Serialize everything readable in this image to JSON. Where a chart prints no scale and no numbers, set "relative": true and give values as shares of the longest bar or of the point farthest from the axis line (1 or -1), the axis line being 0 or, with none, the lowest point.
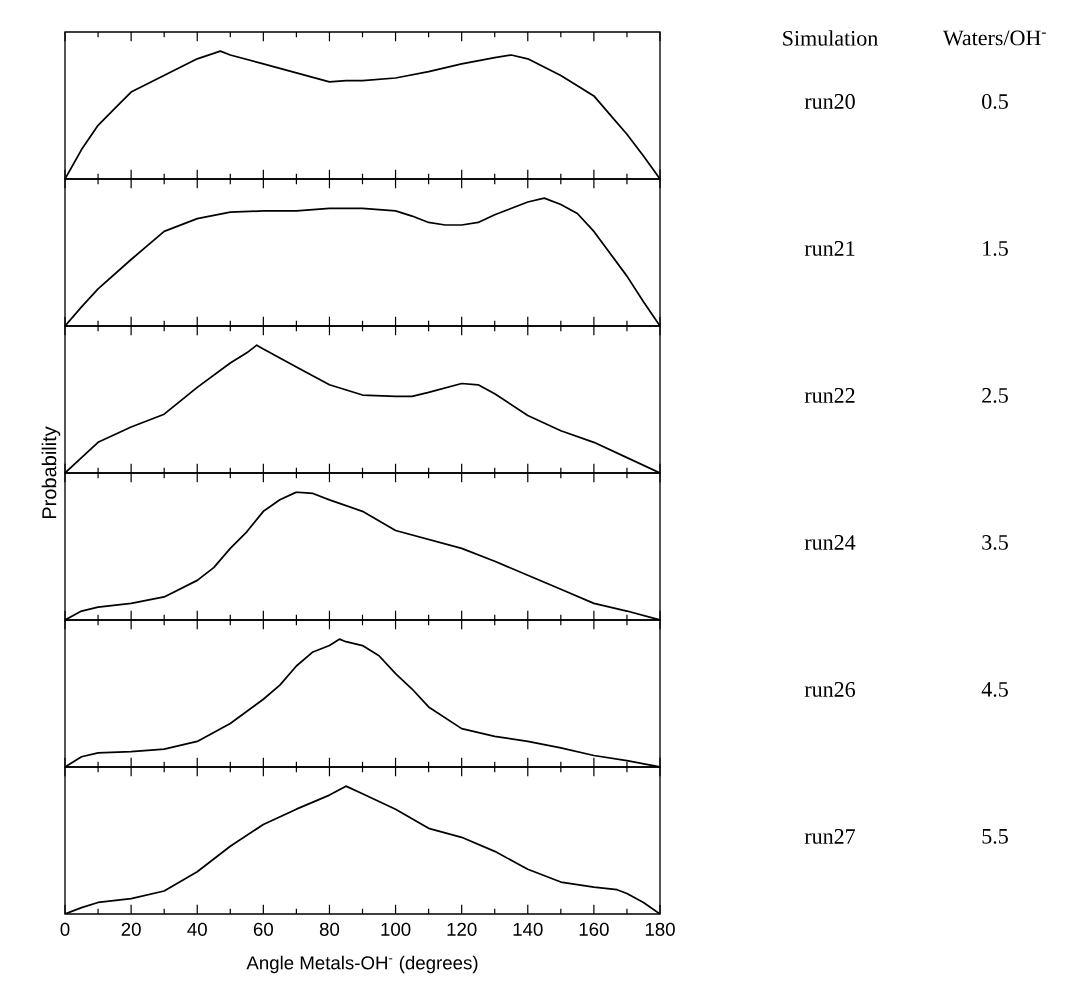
{
  "chart_data": [
    {
      "type": "line",
      "relative": true,
      "xlim": [
        0,
        180
      ],
      "tick_labels": false,
      "xticks": [
        0,
        {
          "value": 10,
          "label": null
        },
        20,
        {
          "value": 30,
          "label": null
        },
        40,
        {
          "value": 50,
          "label": null
        },
        60,
        {
          "value": 70,
          "label": null
        },
        80,
        {
          "value": 90,
          "label": null
        },
        100,
        {
          "value": 110,
          "label": null
        },
        120,
        {
          "value": 130,
          "label": null
        },
        140,
        {
          "value": 150,
          "label": null
        },
        160,
        {
          "value": 170,
          "label": null
        },
        180
      ],
      "color": "#000000",
      "x": [
        0,
        5,
        10,
        15,
        20,
        30,
        40,
        47,
        50,
        60,
        70,
        80,
        85,
        90,
        100,
        110,
        120,
        130,
        135,
        140,
        150,
        160,
        165,
        170,
        175,
        180
      ],
      "annotations": [
        "Simulation",
        "Waters/OH$^{-}$",
        "run20",
        "0.5"
      ],
      "values": [
        0,
        0.23,
        0.42,
        0.55,
        0.68,
        0.81,
        0.94,
        1.0,
        0.97,
        0.9,
        0.83,
        0.76,
        0.77,
        0.77,
        0.79,
        0.84,
        0.9,
        0.95,
        0.97,
        0.94,
        0.81,
        0.65,
        0.5,
        0.35,
        0.18,
        0
      ]
    },
    {
      "type": "line",
      "relative": true,
      "xlim": [
        0,
        180
      ],
      "tick_labels": false,
      "xticks": [
        0,
        {
          "value": 10,
          "label": null
        },
        20,
        {
          "value": 30,
          "label": null
        },
        40,
        {
          "value": 50,
          "label": null
        },
        60,
        {
          "value": 70,
          "label": null
        },
        80,
        {
          "value": 90,
          "label": null
        },
        100,
        {
          "value": 110,
          "label": null
        },
        120,
        {
          "value": 130,
          "label": null
        },
        140,
        {
          "value": 150,
          "label": null
        },
        160,
        {
          "value": 170,
          "label": null
        },
        180
      ],
      "color": "#000000",
      "x": [
        0,
        5,
        10,
        20,
        30,
        40,
        50,
        60,
        70,
        80,
        90,
        100,
        105,
        110,
        115,
        120,
        125,
        130,
        140,
        145,
        150,
        155,
        160,
        170,
        175,
        180
      ],
      "annotations": [
        "run21",
        "1.5"
      ],
      "values": [
        0,
        0.15,
        0.29,
        0.52,
        0.74,
        0.84,
        0.89,
        0.9,
        0.9,
        0.92,
        0.92,
        0.9,
        0.86,
        0.81,
        0.79,
        0.79,
        0.81,
        0.87,
        0.97,
        1.0,
        0.95,
        0.88,
        0.74,
        0.39,
        0.19,
        0
      ]
    },
    {
      "type": "line",
      "relative": true,
      "xlim": [
        0,
        180
      ],
      "tick_labels": false,
      "ylabel": "Probability",
      "xticks": [
        0,
        {
          "value": 10,
          "label": null
        },
        20,
        {
          "value": 30,
          "label": null
        },
        40,
        {
          "value": 50,
          "label": null
        },
        60,
        {
          "value": 70,
          "label": null
        },
        80,
        {
          "value": 90,
          "label": null
        },
        100,
        {
          "value": 110,
          "label": null
        },
        120,
        {
          "value": 130,
          "label": null
        },
        140,
        {
          "value": 150,
          "label": null
        },
        160,
        {
          "value": 170,
          "label": null
        },
        180
      ],
      "color": "#000000",
      "x": [
        0,
        5,
        10,
        20,
        30,
        40,
        50,
        55,
        58,
        60,
        65,
        70,
        80,
        90,
        100,
        105,
        110,
        120,
        125,
        130,
        140,
        150,
        160,
        170,
        180
      ],
      "annotations": [
        "run22",
        "2.5"
      ],
      "values": [
        0,
        0.12,
        0.24,
        0.36,
        0.46,
        0.67,
        0.86,
        0.94,
        1.0,
        0.97,
        0.9,
        0.83,
        0.69,
        0.61,
        0.6,
        0.6,
        0.63,
        0.7,
        0.69,
        0.62,
        0.45,
        0.33,
        0.24,
        0.12,
        0
      ]
    },
    {
      "type": "line",
      "relative": true,
      "xlim": [
        0,
        180
      ],
      "tick_labels": false,
      "xticks": [
        0,
        {
          "value": 10,
          "label": null
        },
        20,
        {
          "value": 30,
          "label": null
        },
        40,
        {
          "value": 50,
          "label": null
        },
        60,
        {
          "value": 70,
          "label": null
        },
        80,
        {
          "value": 90,
          "label": null
        },
        100,
        {
          "value": 110,
          "label": null
        },
        120,
        {
          "value": 130,
          "label": null
        },
        140,
        {
          "value": 150,
          "label": null
        },
        160,
        {
          "value": 170,
          "label": null
        },
        180
      ],
      "color": "#000000",
      "x": [
        0,
        5,
        10,
        20,
        30,
        40,
        45,
        50,
        55,
        60,
        65,
        70,
        75,
        80,
        90,
        100,
        110,
        120,
        130,
        140,
        150,
        160,
        170,
        180
      ],
      "annotations": [
        "run24",
        "3.5"
      ],
      "values": [
        0,
        0.07,
        0.1,
        0.13,
        0.18,
        0.31,
        0.41,
        0.56,
        0.69,
        0.85,
        0.94,
        1.0,
        0.99,
        0.94,
        0.85,
        0.7,
        0.63,
        0.56,
        0.46,
        0.35,
        0.24,
        0.13,
        0.07,
        0
      ]
    },
    {
      "type": "line",
      "relative": true,
      "xlim": [
        0,
        180
      ],
      "tick_labels": false,
      "xticks": [
        0,
        {
          "value": 10,
          "label": null
        },
        20,
        {
          "value": 30,
          "label": null
        },
        40,
        {
          "value": 50,
          "label": null
        },
        60,
        {
          "value": 70,
          "label": null
        },
        80,
        {
          "value": 90,
          "label": null
        },
        100,
        {
          "value": 110,
          "label": null
        },
        120,
        {
          "value": 130,
          "label": null
        },
        140,
        {
          "value": 150,
          "label": null
        },
        160,
        {
          "value": 170,
          "label": null
        },
        180
      ],
      "color": "#000000",
      "x": [
        0,
        5,
        10,
        20,
        30,
        40,
        50,
        60,
        65,
        70,
        75,
        80,
        83,
        85,
        90,
        95,
        100,
        105,
        110,
        120,
        130,
        140,
        150,
        160,
        170,
        180
      ],
      "annotations": [
        "run26",
        "4.5"
      ],
      "values": [
        0,
        0.08,
        0.11,
        0.12,
        0.14,
        0.2,
        0.34,
        0.53,
        0.64,
        0.79,
        0.9,
        0.95,
        1.0,
        0.98,
        0.95,
        0.87,
        0.73,
        0.61,
        0.47,
        0.3,
        0.24,
        0.2,
        0.15,
        0.09,
        0.05,
        0
      ]
    },
    {
      "type": "line",
      "relative": true,
      "xlim": [
        0,
        180
      ],
      "tick_labels": "x",
      "xlabel": "Angle Metals-OH$^{-}$  (degrees)",
      "xticks": [
        0,
        {
          "value": 10,
          "label": null
        },
        20,
        {
          "value": 30,
          "label": null
        },
        40,
        {
          "value": 50,
          "label": null
        },
        60,
        {
          "value": 70,
          "label": null
        },
        80,
        {
          "value": 90,
          "label": null
        },
        100,
        {
          "value": 110,
          "label": null
        },
        120,
        {
          "value": 130,
          "label": null
        },
        140,
        {
          "value": 150,
          "label": null
        },
        160,
        {
          "value": 170,
          "label": null
        },
        180
      ],
      "color": "#000000",
      "x": [
        0,
        5,
        10,
        20,
        30,
        40,
        50,
        60,
        70,
        80,
        85,
        90,
        100,
        110,
        120,
        130,
        140,
        150,
        160,
        167,
        170,
        175,
        180
      ],
      "annotations": [
        "run27",
        "5.5"
      ],
      "values": [
        0,
        0.05,
        0.09,
        0.12,
        0.18,
        0.33,
        0.53,
        0.7,
        0.82,
        0.93,
        1.0,
        0.94,
        0.82,
        0.67,
        0.6,
        0.49,
        0.35,
        0.25,
        0.21,
        0.19,
        0.16,
        0.09,
        0
      ]
    }
  ]
}
